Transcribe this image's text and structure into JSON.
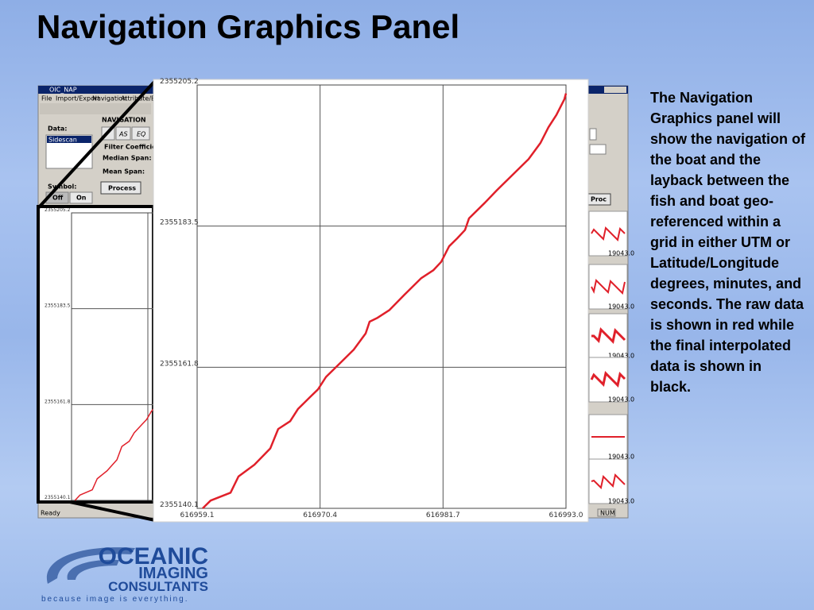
{
  "title": "Navigation Graphics Panel",
  "description": "The Navigation Graphics panel will show the navigation of the boat and the layback between the fish and boat geo-referenced within a grid in either UTM or Latitude/Longitude degrees, minutes, and seconds. The raw data is shown in red while the final interpolated data is shown in black.",
  "app": {
    "window_title": "OIC_NAP",
    "menu": [
      "File",
      "Import/Export",
      "Navigation",
      "Attribute/Enviro"
    ],
    "nav_label": "NAVIGATION",
    "data_label": "Data:",
    "data_item": "Sidescan",
    "buttons": [
      "AS",
      "EQ"
    ],
    "filter_label": "Filter Coefficie",
    "median_label": "Median Span:",
    "mean_label": "Mean Span:",
    "process": "Process",
    "symbol_label": "Symbol:",
    "off": "Off",
    "on": "On",
    "status": "Ready",
    "proc": "Proc",
    "num": "NUM",
    "thumb_labels": [
      "19043.0",
      "19043.0",
      "19043.0",
      "19043.0",
      "19043.0",
      "19043.0"
    ]
  },
  "chart_data": {
    "type": "line",
    "x": [
      616959.61,
      616960.34,
      616962.17,
      616962.9,
      616964.36,
      616965.82,
      616966.55,
      616967.65,
      616968.38,
      616969.47,
      616970.21,
      616970.94,
      616972.4,
      616973.49,
      616974.59,
      616974.95,
      616975.68,
      616976.78,
      616978.24,
      616979.7,
      616980.8,
      616981.53,
      616982.26,
      616982.99,
      616983.72,
      616984.09,
      616985.55,
      616986.64,
      616988.1,
      616989.56,
      616990.66,
      616991.39,
      616992.12,
      616992.85,
      616993.0
    ],
    "series": [
      {
        "color": "#e0202a",
        "values": [
          2355140.1,
          2355141.3,
          2355142.5,
          2355145.0,
          2355146.8,
          2355149.3,
          2355152.3,
          2355153.5,
          2355155.4,
          2355157.2,
          2355158.4,
          2355160.3,
          2355162.7,
          2355164.5,
          2355167.0,
          2355168.8,
          2355169.4,
          2355170.6,
          2355173.1,
          2355175.5,
          2355176.7,
          2355178.0,
          2355180.4,
          2355181.6,
          2355182.9,
          2355184.7,
          2355187.1,
          2355189.0,
          2355191.4,
          2355193.8,
          2355196.3,
          2355198.7,
          2355200.6,
          2355203.0,
          2355203.9
        ]
      }
    ],
    "xlim": [
      616959.1,
      616993.0
    ],
    "ylim": [
      2355140.1,
      2355205.2
    ],
    "xticks": [
      616959.1,
      616970.4,
      616981.7,
      {
        "value": 616993,
        "label": "616993.0"
      }
    ],
    "yticks": [
      2355140.1,
      2355161.8,
      2355183.5,
      2355205.2
    ],
    "grid": true
  },
  "logo": {
    "lines": [
      "OCEANIC",
      "IMAGING",
      "CONSULTANTS"
    ],
    "tagline": "because image is everything."
  }
}
